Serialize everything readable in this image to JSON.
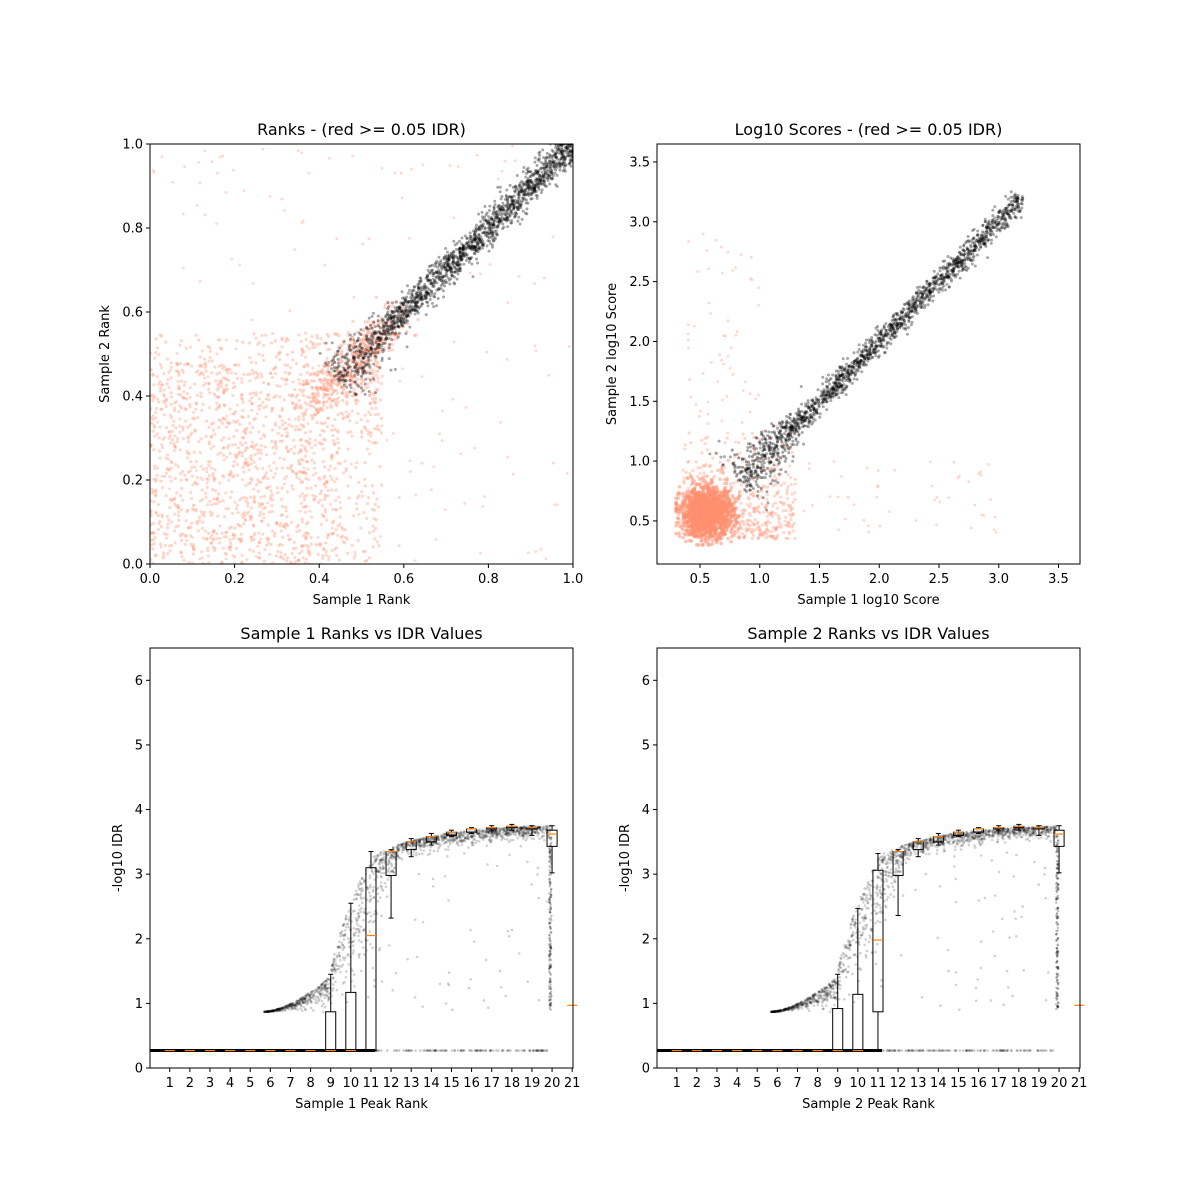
{
  "colors": {
    "pass": "#000000",
    "fail": "#ff9070",
    "median": "#ff7f0e",
    "box": "#000000"
  },
  "chart_data": [
    {
      "type": "scatter",
      "title": "Ranks - (red >= 0.05 IDR)",
      "xlabel": "Sample 1 Rank",
      "ylabel": "Sample 2 Rank",
      "xlim": [
        0,
        1
      ],
      "ylim": [
        0,
        1
      ],
      "xticks": [
        "0.0",
        "0.2",
        "0.4",
        "0.6",
        "0.8",
        "1.0"
      ],
      "yticks": [
        "0.0",
        "0.2",
        "0.4",
        "0.6",
        "0.8",
        "1.0"
      ],
      "series": [
        {
          "color": "fail",
          "description": "diffuse cloud 0-0.55 plus tail to ~0.58 and sparse outliers"
        },
        {
          "color": "pass",
          "description": "diagonal band from (0.44,0.44) to (1.0,1.0), widening near 0.5"
        }
      ],
      "pass_band": {
        "start": [
          0.44,
          0.44
        ],
        "end": [
          1.0,
          1.0
        ]
      },
      "fail_cloud": {
        "x": [
          0,
          0.55
        ],
        "y": [
          0,
          0.55
        ]
      }
    },
    {
      "type": "scatter",
      "title": "Log10 Scores - (red >= 0.05 IDR)",
      "xlabel": "Sample 1 log10 Score",
      "ylabel": "Sample 2 log10 Score",
      "xlim": [
        0.14,
        3.68
      ],
      "ylim": [
        0.14,
        3.65
      ],
      "xticks": [
        "0.5",
        "1.0",
        "1.5",
        "2.0",
        "2.5",
        "3.0",
        "3.5"
      ],
      "yticks": [
        "0.5",
        "1.0",
        "1.5",
        "2.0",
        "2.5",
        "3.0",
        "3.5"
      ],
      "pass_band": {
        "start": [
          0.82,
          0.82
        ],
        "end": [
          3.2,
          3.2
        ]
      },
      "fail_cloud": {
        "center": [
          0.55,
          0.55
        ],
        "x": [
          0.3,
          1.3
        ],
        "y": [
          0.3,
          1.3
        ]
      }
    },
    {
      "type": "box",
      "title": "Sample 1 Ranks vs IDR Values",
      "xlabel": "Sample 1 Peak Rank",
      "ylabel": "-log10 IDR",
      "ylim": [
        0,
        6.5
      ],
      "xticks": [
        "1",
        "2",
        "3",
        "4",
        "5",
        "6",
        "7",
        "8",
        "9",
        "10",
        "11",
        "12",
        "13",
        "14",
        "15",
        "16",
        "17",
        "18",
        "19",
        "20",
        "21"
      ],
      "yticks": [
        "0",
        "1",
        "2",
        "3",
        "4",
        "5",
        "6"
      ],
      "boxes": [
        {
          "pos": 1,
          "q1": 0.27,
          "med": 0.27,
          "q3": 0.27,
          "lo": 0.27,
          "hi": 0.27
        },
        {
          "pos": 2,
          "q1": 0.27,
          "med": 0.27,
          "q3": 0.27,
          "lo": 0.27,
          "hi": 0.27
        },
        {
          "pos": 3,
          "q1": 0.27,
          "med": 0.27,
          "q3": 0.27,
          "lo": 0.27,
          "hi": 0.27
        },
        {
          "pos": 4,
          "q1": 0.27,
          "med": 0.27,
          "q3": 0.27,
          "lo": 0.27,
          "hi": 0.27
        },
        {
          "pos": 5,
          "q1": 0.27,
          "med": 0.27,
          "q3": 0.27,
          "lo": 0.27,
          "hi": 0.27
        },
        {
          "pos": 6,
          "q1": 0.27,
          "med": 0.27,
          "q3": 0.27,
          "lo": 0.27,
          "hi": 0.27
        },
        {
          "pos": 7,
          "q1": 0.27,
          "med": 0.27,
          "q3": 0.27,
          "lo": 0.27,
          "hi": 0.27
        },
        {
          "pos": 8,
          "q1": 0.27,
          "med": 0.27,
          "q3": 0.27,
          "lo": 0.27,
          "hi": 0.27
        },
        {
          "pos": 9,
          "q1": 0.27,
          "med": 0.27,
          "q3": 0.87,
          "lo": 0.27,
          "hi": 1.45
        },
        {
          "pos": 10,
          "q1": 0.27,
          "med": 0.27,
          "q3": 1.17,
          "lo": 0.27,
          "hi": 2.55
        },
        {
          "pos": 11,
          "q1": 0.27,
          "med": 2.05,
          "q3": 3.1,
          "lo": 0.27,
          "hi": 3.35
        },
        {
          "pos": 12,
          "q1": 2.98,
          "med": 3.35,
          "q3": 3.35,
          "lo": 2.32,
          "hi": 3.38
        },
        {
          "pos": 13,
          "q1": 3.38,
          "med": 3.5,
          "q3": 3.5,
          "lo": 3.27,
          "hi": 3.55
        },
        {
          "pos": 14,
          "q1": 3.5,
          "med": 3.58,
          "q3": 3.58,
          "lo": 3.45,
          "hi": 3.63
        },
        {
          "pos": 15,
          "q1": 3.6,
          "med": 3.65,
          "q3": 3.65,
          "lo": 3.58,
          "hi": 3.68
        },
        {
          "pos": 16,
          "q1": 3.65,
          "med": 3.7,
          "q3": 3.7,
          "lo": 3.63,
          "hi": 3.72
        },
        {
          "pos": 17,
          "q1": 3.7,
          "med": 3.72,
          "q3": 3.72,
          "lo": 3.67,
          "hi": 3.75
        },
        {
          "pos": 18,
          "q1": 3.72,
          "med": 3.74,
          "q3": 3.74,
          "lo": 3.68,
          "hi": 3.77
        },
        {
          "pos": 19,
          "q1": 3.7,
          "med": 3.72,
          "q3": 3.72,
          "lo": 3.6,
          "hi": 3.75
        },
        {
          "pos": 20,
          "q1": 3.43,
          "med": 3.62,
          "q3": 3.68,
          "lo": 3.02,
          "hi": 3.75
        },
        {
          "pos": 21,
          "q1": 0.97,
          "med": 0.97,
          "q3": 0.97,
          "lo": 0.97,
          "hi": 0.97
        }
      ]
    },
    {
      "type": "box",
      "title": "Sample 2 Ranks vs IDR Values",
      "xlabel": "Sample 2 Peak Rank",
      "ylabel": "-log10 IDR",
      "ylim": [
        0,
        6.5
      ],
      "xticks": [
        "1",
        "2",
        "3",
        "4",
        "5",
        "6",
        "7",
        "8",
        "9",
        "10",
        "11",
        "12",
        "13",
        "14",
        "15",
        "16",
        "17",
        "18",
        "19",
        "20",
        "21"
      ],
      "yticks": [
        "0",
        "1",
        "2",
        "3",
        "4",
        "5",
        "6"
      ],
      "boxes": [
        {
          "pos": 1,
          "q1": 0.27,
          "med": 0.27,
          "q3": 0.27,
          "lo": 0.27,
          "hi": 0.27
        },
        {
          "pos": 2,
          "q1": 0.27,
          "med": 0.27,
          "q3": 0.27,
          "lo": 0.27,
          "hi": 0.27
        },
        {
          "pos": 3,
          "q1": 0.27,
          "med": 0.27,
          "q3": 0.27,
          "lo": 0.27,
          "hi": 0.27
        },
        {
          "pos": 4,
          "q1": 0.27,
          "med": 0.27,
          "q3": 0.27,
          "lo": 0.27,
          "hi": 0.27
        },
        {
          "pos": 5,
          "q1": 0.27,
          "med": 0.27,
          "q3": 0.27,
          "lo": 0.27,
          "hi": 0.27
        },
        {
          "pos": 6,
          "q1": 0.27,
          "med": 0.27,
          "q3": 0.27,
          "lo": 0.27,
          "hi": 0.27
        },
        {
          "pos": 7,
          "q1": 0.27,
          "med": 0.27,
          "q3": 0.27,
          "lo": 0.27,
          "hi": 0.27
        },
        {
          "pos": 8,
          "q1": 0.27,
          "med": 0.27,
          "q3": 0.27,
          "lo": 0.27,
          "hi": 0.27
        },
        {
          "pos": 9,
          "q1": 0.27,
          "med": 0.27,
          "q3": 0.92,
          "lo": 0.27,
          "hi": 1.45
        },
        {
          "pos": 10,
          "q1": 0.27,
          "med": 0.27,
          "q3": 1.14,
          "lo": 0.27,
          "hi": 2.47
        },
        {
          "pos": 11,
          "q1": 0.87,
          "med": 1.98,
          "q3": 3.06,
          "lo": 0.27,
          "hi": 3.32
        },
        {
          "pos": 12,
          "q1": 2.98,
          "med": 3.35,
          "q3": 3.35,
          "lo": 2.36,
          "hi": 3.38
        },
        {
          "pos": 13,
          "q1": 3.38,
          "med": 3.5,
          "q3": 3.5,
          "lo": 3.27,
          "hi": 3.55
        },
        {
          "pos": 14,
          "q1": 3.5,
          "med": 3.58,
          "q3": 3.58,
          "lo": 3.45,
          "hi": 3.63
        },
        {
          "pos": 15,
          "q1": 3.6,
          "med": 3.65,
          "q3": 3.65,
          "lo": 3.58,
          "hi": 3.68
        },
        {
          "pos": 16,
          "q1": 3.65,
          "med": 3.7,
          "q3": 3.7,
          "lo": 3.63,
          "hi": 3.72
        },
        {
          "pos": 17,
          "q1": 3.7,
          "med": 3.72,
          "q3": 3.72,
          "lo": 3.67,
          "hi": 3.75
        },
        {
          "pos": 18,
          "q1": 3.72,
          "med": 3.74,
          "q3": 3.74,
          "lo": 3.68,
          "hi": 3.77
        },
        {
          "pos": 19,
          "q1": 3.7,
          "med": 3.72,
          "q3": 3.72,
          "lo": 3.6,
          "hi": 3.75
        },
        {
          "pos": 20,
          "q1": 3.43,
          "med": 3.62,
          "q3": 3.68,
          "lo": 3.02,
          "hi": 3.75
        },
        {
          "pos": 21,
          "q1": 0.97,
          "med": 0.97,
          "q3": 0.97,
          "lo": 0.97,
          "hi": 0.97
        }
      ]
    }
  ]
}
